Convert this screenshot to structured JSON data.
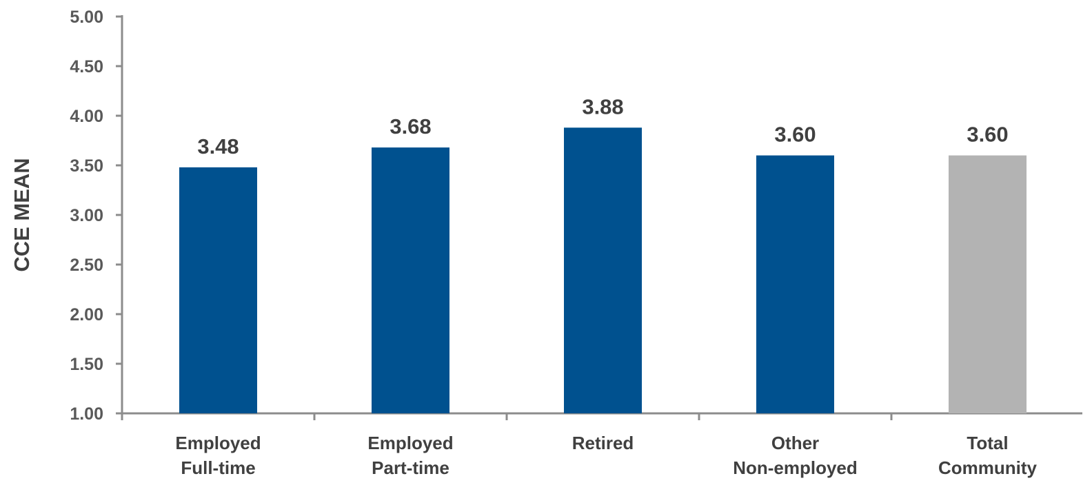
{
  "chart_data": {
    "type": "bar",
    "title": "",
    "xlabel": "",
    "ylabel": "CCE MEAN",
    "ylim": [
      1.0,
      5.0
    ],
    "yticks": [
      "1.00",
      "1.50",
      "2.00",
      "2.50",
      "3.00",
      "3.50",
      "4.00",
      "4.50",
      "5.00"
    ],
    "categories": [
      [
        "Employed",
        "Full-time"
      ],
      [
        "Employed",
        "Part-time"
      ],
      [
        "Retired"
      ],
      [
        "Other",
        "Non-employed"
      ],
      [
        "Total",
        "Community"
      ]
    ],
    "values": [
      3.48,
      3.68,
      3.88,
      3.6,
      3.6
    ],
    "data_labels": [
      "3.48",
      "3.68",
      "3.88",
      "3.60",
      "3.60"
    ],
    "bar_colors": [
      "#00518f",
      "#00518f",
      "#00518f",
      "#00518f",
      "#b3b3b3"
    ],
    "grid": false,
    "legend": "none"
  }
}
